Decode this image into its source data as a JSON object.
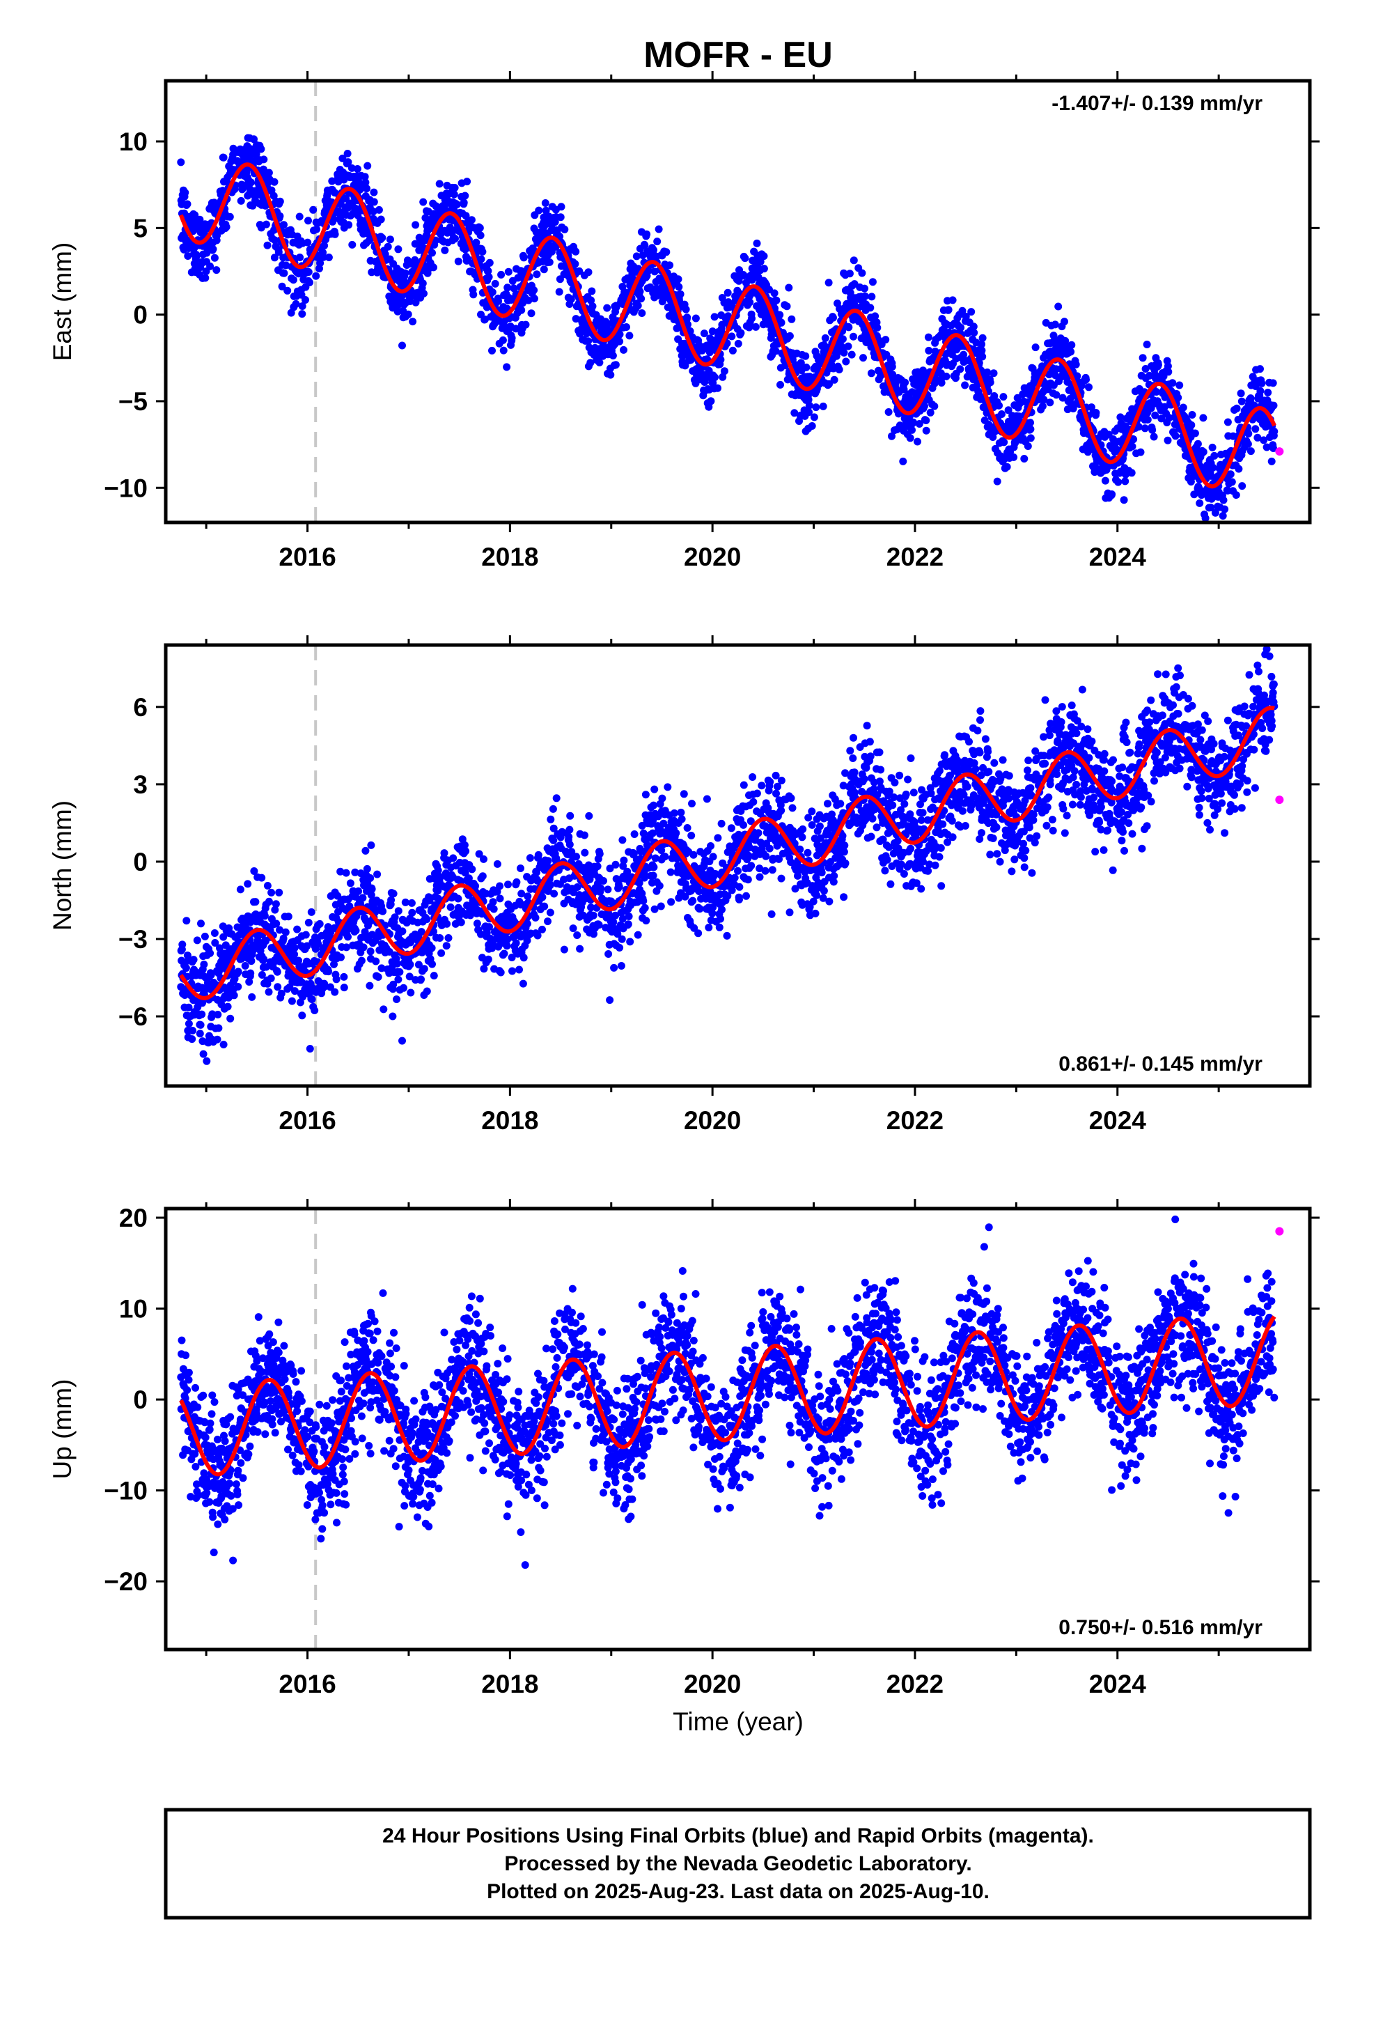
{
  "title": "MOFR - EU",
  "x_axis_label": "Time (year)",
  "footer": {
    "line1": "24 Hour Positions Using Final Orbits (blue) and Rapid Orbits (magenta).",
    "line2": "Processed by the Nevada Geodetic Laboratory.",
    "line3": "Plotted on 2025-Aug-23. Last data on 2025-Aug-10."
  },
  "colors": {
    "final_orbits": "#0000ff",
    "rapid_orbits": "#ff00ff",
    "model_fit": "#ff0000",
    "event_line": "#c8c8c8"
  },
  "chart_data": [
    {
      "type": "scatter",
      "component": "east",
      "ylabel": "East (mm)",
      "rate_text": "-1.407+/- 0.139 mm/yr",
      "rate_position": "top-right",
      "xlim": [
        2014.6,
        2025.9
      ],
      "ylim": [
        -12,
        13.5
      ],
      "x_ticks": [
        2016,
        2018,
        2020,
        2022,
        2024
      ],
      "y_ticks": [
        -10,
        -5,
        0,
        5,
        10
      ],
      "event_line_x": 2016.08,
      "model": {
        "offset": 7.0,
        "rate": -1.407,
        "t0": 2014.75,
        "amplitude": 2.6,
        "peak_phase": 0.42
      },
      "scatter_noise": 1.1,
      "rapid_point": {
        "x": 2025.6,
        "y": -7.9
      },
      "series": [
        {
          "name": "Final Orbits (blue)",
          "x_range": [
            2014.75,
            2025.55
          ]
        },
        {
          "name": "Rapid Orbits (magenta)",
          "x": [
            2025.6
          ],
          "y": [
            -7.9
          ]
        }
      ]
    },
    {
      "type": "scatter",
      "component": "north",
      "ylabel": "North (mm)",
      "rate_text": "0.861+/- 0.145 mm/yr",
      "rate_position": "bottom-right",
      "xlim": [
        2014.6,
        2025.9
      ],
      "ylim": [
        -8.7,
        8.4
      ],
      "x_ticks": [
        2016,
        2018,
        2020,
        2022,
        2024
      ],
      "y_ticks": [
        -6,
        -3,
        0,
        3,
        6
      ],
      "event_line_x": 2016.08,
      "model": {
        "offset": -4.4,
        "rate": 0.861,
        "t0": 2014.75,
        "amplitude": 1.1,
        "peak_phase": 0.5
      },
      "scatter_noise": 1.0,
      "rapid_point": {
        "x": 2025.6,
        "y": 2.4
      },
      "series": [
        {
          "name": "Final Orbits (blue)",
          "x_range": [
            2014.75,
            2025.55
          ]
        },
        {
          "name": "Rapid Orbits (magenta)",
          "x": [
            2025.6
          ],
          "y": [
            2.4
          ]
        }
      ]
    },
    {
      "type": "scatter",
      "component": "up",
      "ylabel": "Up (mm)",
      "rate_text": "0.750+/- 0.516 mm/yr",
      "rate_position": "bottom-right",
      "xlim": [
        2014.6,
        2025.9
      ],
      "ylim": [
        -27.5,
        21
      ],
      "x_ticks": [
        2016,
        2018,
        2020,
        2022,
        2024
      ],
      "y_ticks": [
        -20,
        -10,
        0,
        10,
        20
      ],
      "event_line_x": 2016.08,
      "model": {
        "offset": -3.5,
        "rate": 0.75,
        "t0": 2014.75,
        "amplitude": 5.0,
        "peak_phase": 0.62
      },
      "scatter_noise": 3.6,
      "rapid_point": {
        "x": 2025.6,
        "y": 18.5
      },
      "series": [
        {
          "name": "Final Orbits (blue)",
          "x_range": [
            2014.75,
            2025.55
          ]
        },
        {
          "name": "Rapid Orbits (magenta)",
          "x": [
            2025.6
          ],
          "y": [
            18.5
          ]
        }
      ]
    }
  ]
}
